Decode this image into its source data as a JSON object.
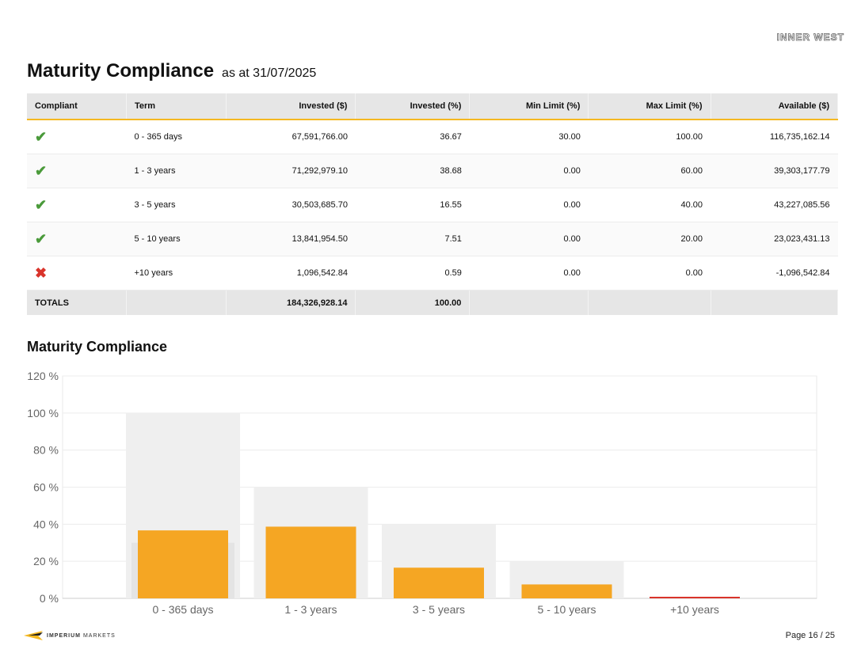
{
  "header": {
    "logo_text": "INNER WEST",
    "title": "Maturity Compliance",
    "subtitle": "as at 31/07/2025"
  },
  "table": {
    "columns": [
      "Compliant",
      "Term",
      "Invested ($)",
      "Invested (%)",
      "Min Limit (%)",
      "Max Limit (%)",
      "Available ($)"
    ],
    "rows": [
      {
        "compliant": true,
        "icon": "check-icon",
        "term": "0 - 365 days",
        "invested": "67,591,766.00",
        "invested_pct": "36.67",
        "min": "30.00",
        "max": "100.00",
        "available": "116,735,162.14"
      },
      {
        "compliant": true,
        "icon": "check-icon",
        "term": "1 - 3 years",
        "invested": "71,292,979.10",
        "invested_pct": "38.68",
        "min": "0.00",
        "max": "60.00",
        "available": "39,303,177.79"
      },
      {
        "compliant": true,
        "icon": "check-icon",
        "term": "3 - 5 years",
        "invested": "30,503,685.70",
        "invested_pct": "16.55",
        "min": "0.00",
        "max": "40.00",
        "available": "43,227,085.56"
      },
      {
        "compliant": true,
        "icon": "check-icon",
        "term": "5 - 10 years",
        "invested": "13,841,954.50",
        "invested_pct": "7.51",
        "min": "0.00",
        "max": "20.00",
        "available": "23,023,431.13"
      },
      {
        "compliant": false,
        "icon": "cross-icon",
        "term": "+10 years",
        "invested": "1,096,542.84",
        "invested_pct": "0.59",
        "min": "0.00",
        "max": "0.00",
        "available": "-1,096,542.84"
      }
    ],
    "totals": {
      "label": "TOTALS",
      "invested": "184,326,928.14",
      "invested_pct": "100.00"
    }
  },
  "chart_title": "Maturity Compliance",
  "chart_data": {
    "type": "bar",
    "title": "Maturity Compliance",
    "categories": [
      "0 - 365 days",
      "1 - 3 years",
      "3 - 5 years",
      "5 - 10 years",
      "+10 years"
    ],
    "series": [
      {
        "values": [
          36.67,
          38.68,
          16.55,
          7.51,
          0.59
        ],
        "color": "#f5a623",
        "breach_color": "#d9342b"
      }
    ],
    "min_limits": [
      30,
      0,
      0,
      0,
      0
    ],
    "max_limits": [
      100,
      60,
      40,
      20,
      0
    ],
    "limit_color": "#efefef",
    "ylim": [
      0,
      120
    ],
    "yticks": [
      0,
      20,
      40,
      60,
      80,
      100,
      120
    ],
    "ytick_labels": [
      "0 %",
      "20 %",
      "40 %",
      "60 %",
      "80 %",
      "100 %",
      "120 %"
    ],
    "xlabel": "",
    "ylabel": "",
    "grid": true
  },
  "footer": {
    "logo_text_bold": "IMPERIUM",
    "logo_text_light": "MARKETS",
    "page": "Page 16 / 25"
  }
}
